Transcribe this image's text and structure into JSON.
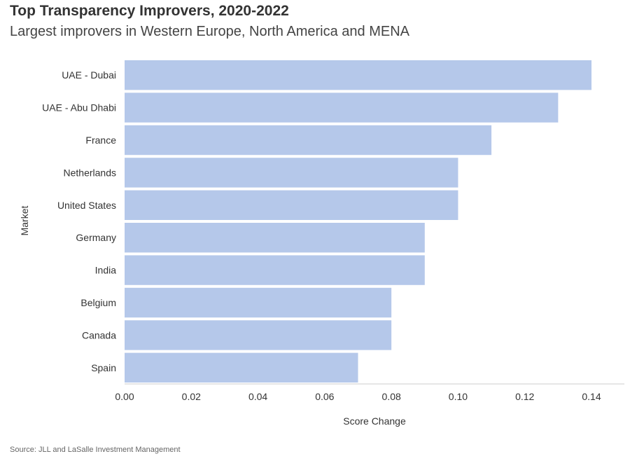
{
  "header": {
    "title": "Top Transparency Improvers, 2020-2022",
    "subtitle": "Largest improvers in Western Europe, North America and MENA"
  },
  "footer": {
    "source": "Source: JLL and LaSalle Investment Management"
  },
  "chart_data": {
    "type": "bar",
    "orientation": "horizontal",
    "categories": [
      "UAE - Dubai",
      "UAE - Abu Dhabi",
      "France",
      "Netherlands",
      "United States",
      "Germany",
      "India",
      "Belgium",
      "Canada",
      "Spain"
    ],
    "values": [
      0.14,
      0.13,
      0.11,
      0.1,
      0.1,
      0.09,
      0.09,
      0.08,
      0.08,
      0.07
    ],
    "xlabel": "Score Change",
    "ylabel": "Market",
    "xlim": [
      0,
      0.15
    ],
    "xticks": [
      "0.00",
      "0.02",
      "0.04",
      "0.06",
      "0.08",
      "0.10",
      "0.12",
      "0.14"
    ],
    "grid": false,
    "bar_color": "#b5c8ea"
  }
}
